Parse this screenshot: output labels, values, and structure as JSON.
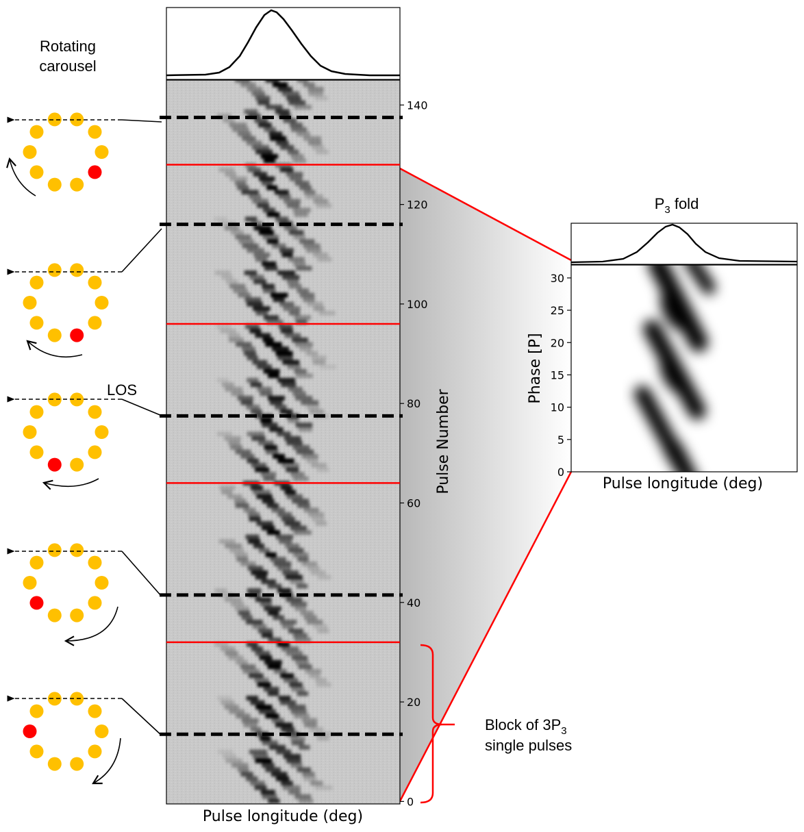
{
  "annotations": {
    "carousel_title_line1": "Rotating",
    "carousel_title_line2": "carousel",
    "los_label": "LOS",
    "p3_fold_title": "P",
    "p3_fold_sub": "3",
    "p3_fold_rest": " fold",
    "block_line1_a": "Block of 3P",
    "block_line1_sub": "3",
    "block_line2": "single pulses"
  },
  "main_panel": {
    "xlabel": "Pulse longitude (deg)",
    "ylabel": "Pulse Number",
    "ylim": [
      -0.5,
      145
    ],
    "yticks": [
      0,
      20,
      40,
      60,
      80,
      100,
      120,
      140
    ],
    "red_lines_at_pulse": [
      32,
      64,
      96,
      128
    ],
    "dashed_lines_at_pulse": [
      13.5,
      41.5,
      77.5,
      116,
      137.5
    ]
  },
  "fold_panel": {
    "ylabel": "Phase [P]",
    "xlabel": "Pulse longitude (deg)",
    "ylim": [
      0,
      32
    ],
    "yticks": [
      0,
      5,
      10,
      15,
      20,
      25,
      30
    ]
  },
  "colors": {
    "red": "#ff0000",
    "spark_yellow": "#ffc000",
    "spark_red": "#ff0000",
    "background_gray": "#c8c8c8"
  },
  "carousels": [
    {
      "red_index": 6
    },
    {
      "red_index": 5
    },
    {
      "red_index": 4
    },
    {
      "red_index": 3
    },
    {
      "red_index": 2
    }
  ]
}
